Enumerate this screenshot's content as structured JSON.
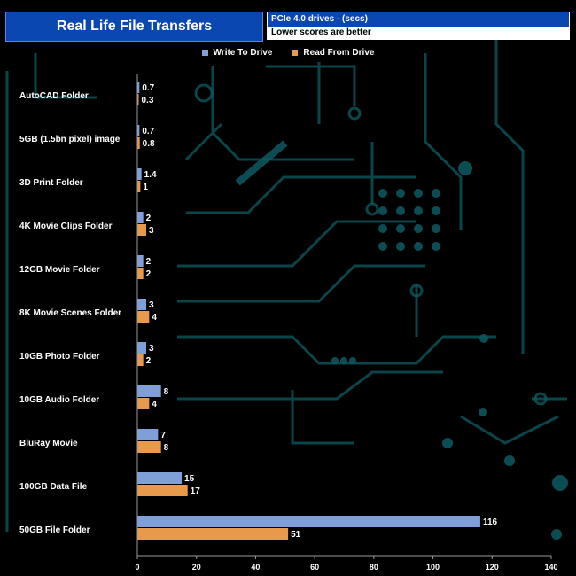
{
  "header": {
    "title": "Real Life File Transfers",
    "subtitle": "PCIe 4.0 drives - (secs)",
    "note": "Lower scores are better"
  },
  "colors": {
    "write": "#7f9fd8",
    "read": "#e89a4c",
    "title_bg": "#0a47b0",
    "circuit": "#0e5c63"
  },
  "chart_data": {
    "type": "bar",
    "orientation": "horizontal",
    "title": "Real Life File Transfers",
    "categories": [
      "AutoCAD Folder",
      "5GB (1.5bn pixel) image",
      "3D Print Folder",
      "4K Movie Clips Folder",
      "12GB Movie Folder",
      "8K Movie Scenes Folder",
      "10GB Photo Folder",
      "10GB Audio Folder",
      "BluRay Movie",
      "100GB Data File",
      "50GB File Folder"
    ],
    "series": [
      {
        "name": "Write To  Drive",
        "values": [
          0.7,
          0.7,
          1.4,
          2,
          2,
          3,
          3,
          8,
          7,
          15,
          116
        ]
      },
      {
        "name": "Read From  Drive",
        "values": [
          0.3,
          0.8,
          1,
          3,
          2,
          4,
          2,
          4,
          8,
          17,
          51
        ]
      }
    ],
    "xlim": [
      0,
      140
    ],
    "xticks": [
      0,
      20,
      40,
      60,
      80,
      100,
      120,
      140
    ],
    "grid": false,
    "legend": "top-center"
  }
}
